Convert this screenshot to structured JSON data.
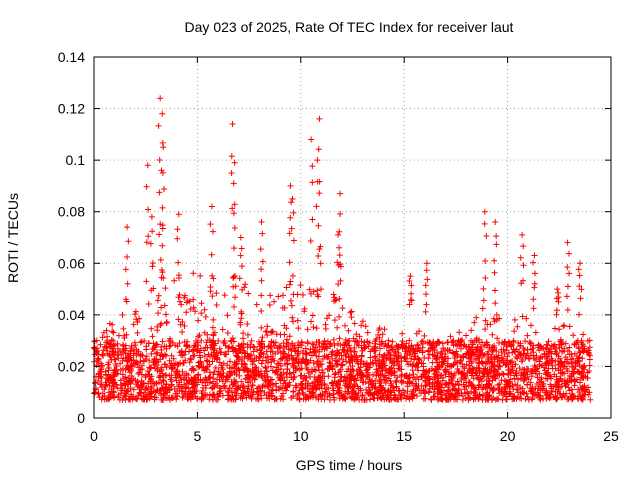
{
  "chart_data": {
    "type": "scatter",
    "title": "Day 023 of 2025, Rate Of TEC Index for receiver laut",
    "xlabel": "GPS time / hours",
    "ylabel": "ROTI / TECUs",
    "xlim": [
      0,
      25
    ],
    "ylim": [
      0,
      0.14
    ],
    "x_ticks": [
      0,
      5,
      10,
      15,
      20,
      25
    ],
    "x_tick_labels": [
      "0",
      "5",
      "10",
      "15",
      "20",
      "25"
    ],
    "y_ticks": [
      0,
      0.02,
      0.04,
      0.06,
      0.08,
      0.1,
      0.12,
      0.14
    ],
    "y_tick_labels": [
      "0",
      "0.02",
      "0.04",
      "0.06",
      "0.08",
      "0.1",
      "0.12",
      "0.14"
    ],
    "grid": true,
    "marker": "+",
    "series": [
      {
        "name": "ROTI",
        "color": "#ff0000",
        "data_range_hours": [
          0,
          24
        ],
        "typical_band": [
          0.007,
          0.03
        ],
        "profile": [
          {
            "x": 0,
            "y": 0.035
          },
          {
            "x": 1,
            "y": 0.038
          },
          {
            "x": 2,
            "y": 0.045
          },
          {
            "x": 3,
            "y": 0.05
          },
          {
            "x": 4,
            "y": 0.055
          },
          {
            "x": 5,
            "y": 0.058
          },
          {
            "x": 6,
            "y": 0.056
          },
          {
            "x": 7,
            "y": 0.055
          },
          {
            "x": 8,
            "y": 0.05
          },
          {
            "x": 9,
            "y": 0.05
          },
          {
            "x": 10,
            "y": 0.052
          },
          {
            "x": 11,
            "y": 0.055
          },
          {
            "x": 12,
            "y": 0.045
          },
          {
            "x": 13,
            "y": 0.038
          },
          {
            "x": 14,
            "y": 0.035
          },
          {
            "x": 15,
            "y": 0.033
          },
          {
            "x": 16,
            "y": 0.035
          },
          {
            "x": 17,
            "y": 0.034
          },
          {
            "x": 18,
            "y": 0.038
          },
          {
            "x": 19,
            "y": 0.045
          },
          {
            "x": 20,
            "y": 0.042
          },
          {
            "x": 21,
            "y": 0.04
          },
          {
            "x": 22,
            "y": 0.036
          },
          {
            "x": 23,
            "y": 0.04
          },
          {
            "x": 24,
            "y": 0.04
          }
        ],
        "peaks": [
          {
            "x": 1.6,
            "y": 0.074
          },
          {
            "x": 2.6,
            "y": 0.098
          },
          {
            "x": 2.8,
            "y": 0.078
          },
          {
            "x": 3.2,
            "y": 0.124
          },
          {
            "x": 3.3,
            "y": 0.118
          },
          {
            "x": 3.35,
            "y": 0.105
          },
          {
            "x": 4.1,
            "y": 0.079
          },
          {
            "x": 5.7,
            "y": 0.082
          },
          {
            "x": 6.7,
            "y": 0.114
          },
          {
            "x": 6.8,
            "y": 0.099
          },
          {
            "x": 7.1,
            "y": 0.07
          },
          {
            "x": 8.1,
            "y": 0.076
          },
          {
            "x": 9.5,
            "y": 0.09
          },
          {
            "x": 9.6,
            "y": 0.085
          },
          {
            "x": 10.5,
            "y": 0.108
          },
          {
            "x": 10.9,
            "y": 0.116
          },
          {
            "x": 10.8,
            "y": 0.1
          },
          {
            "x": 11.9,
            "y": 0.087
          },
          {
            "x": 11.8,
            "y": 0.071
          },
          {
            "x": 15.3,
            "y": 0.055
          },
          {
            "x": 16.1,
            "y": 0.06
          },
          {
            "x": 18.9,
            "y": 0.08
          },
          {
            "x": 19.4,
            "y": 0.076
          },
          {
            "x": 20.7,
            "y": 0.071
          },
          {
            "x": 21.3,
            "y": 0.063
          },
          {
            "x": 22.4,
            "y": 0.05
          },
          {
            "x": 22.9,
            "y": 0.068
          },
          {
            "x": 23.5,
            "y": 0.06
          }
        ]
      }
    ]
  }
}
